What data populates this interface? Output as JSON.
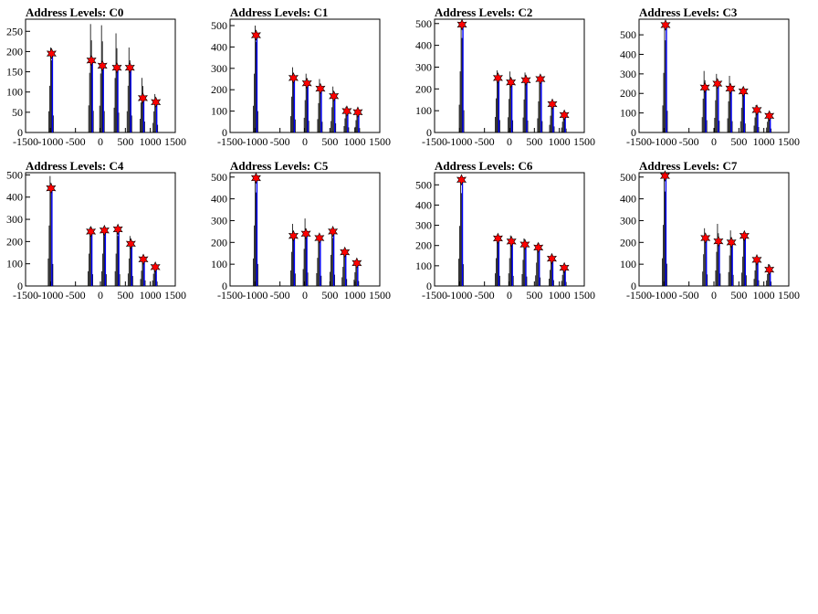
{
  "figure": {
    "background": "#ffffff",
    "hist_color": "#000000",
    "fit_color": "#0000ff",
    "marker_color": "#ff0000"
  },
  "chart_data": [
    {
      "type": "bar",
      "title": "Address Levels: C0",
      "xlim": [
        -1500,
        1500
      ],
      "ylim": [
        0,
        280
      ],
      "x_ticks": [
        -1500,
        -1000,
        -500,
        0,
        500,
        1000,
        1500
      ],
      "x_tick_labels": [
        "-1500",
        "-1000",
        "-500",
        "0",
        "500",
        "1000",
        "1500"
      ],
      "y_ticks": [
        0,
        50,
        100,
        150,
        200,
        250
      ],
      "y_tick_labels": [
        "0",
        "50",
        "100",
        "150",
        "200",
        "250"
      ],
      "peaks": [
        {
          "x": -980,
          "y": 195,
          "max": 210
        },
        {
          "x": -180,
          "y": 178,
          "max": 268
        },
        {
          "x": 40,
          "y": 165,
          "max": 265
        },
        {
          "x": 330,
          "y": 160,
          "max": 245
        },
        {
          "x": 590,
          "y": 160,
          "max": 210
        },
        {
          "x": 850,
          "y": 85,
          "max": 135
        },
        {
          "x": 1110,
          "y": 75,
          "max": 95
        }
      ]
    },
    {
      "type": "bar",
      "title": "Address Levels: C1",
      "xlim": [
        -1500,
        1500
      ],
      "ylim": [
        0,
        530
      ],
      "x_ticks": [
        -1500,
        -1000,
        -500,
        0,
        500,
        1000,
        1500
      ],
      "x_tick_labels": [
        "-1500",
        "-1000",
        "-500",
        "0",
        "500",
        "1000",
        "1500"
      ],
      "y_ticks": [
        0,
        100,
        200,
        300,
        400,
        500
      ],
      "y_tick_labels": [
        "0",
        "100",
        "200",
        "300",
        "400",
        "500"
      ],
      "peaks": [
        {
          "x": -980,
          "y": 455,
          "max": 500
        },
        {
          "x": -230,
          "y": 255,
          "max": 305
        },
        {
          "x": 40,
          "y": 230,
          "max": 275
        },
        {
          "x": 310,
          "y": 205,
          "max": 250
        },
        {
          "x": 580,
          "y": 170,
          "max": 215
        },
        {
          "x": 840,
          "y": 100,
          "max": 120
        },
        {
          "x": 1060,
          "y": 95,
          "max": 105
        }
      ]
    },
    {
      "type": "bar",
      "title": "Address Levels: C2",
      "xlim": [
        -1500,
        1500
      ],
      "ylim": [
        0,
        520
      ],
      "x_ticks": [
        -1500,
        -1000,
        -500,
        0,
        500,
        1000,
        1500
      ],
      "x_tick_labels": [
        "-1500",
        "-1000",
        "-500",
        "0",
        "500",
        "1000",
        "1500"
      ],
      "y_ticks": [
        0,
        100,
        200,
        300,
        400,
        500
      ],
      "y_tick_labels": [
        "0",
        "100",
        "200",
        "300",
        "400",
        "500"
      ],
      "peaks": [
        {
          "x": -950,
          "y": 495,
          "max": 510
        },
        {
          "x": -230,
          "y": 250,
          "max": 285
        },
        {
          "x": 30,
          "y": 230,
          "max": 280
        },
        {
          "x": 330,
          "y": 240,
          "max": 275
        },
        {
          "x": 620,
          "y": 245,
          "max": 260
        },
        {
          "x": 860,
          "y": 130,
          "max": 140
        },
        {
          "x": 1100,
          "y": 80,
          "max": 90
        }
      ]
    },
    {
      "type": "bar",
      "title": "Address Levels: C3",
      "xlim": [
        -1500,
        1500
      ],
      "ylim": [
        0,
        580
      ],
      "x_ticks": [
        -1500,
        -1000,
        -500,
        0,
        500,
        1000,
        1500
      ],
      "x_tick_labels": [
        "-1500",
        "-1000",
        "-500",
        "0",
        "500",
        "1000",
        "1500"
      ],
      "y_ticks": [
        0,
        100,
        200,
        300,
        400,
        500
      ],
      "y_tick_labels": [
        "0",
        "100",
        "200",
        "300",
        "400",
        "500"
      ],
      "peaks": [
        {
          "x": -970,
          "y": 550,
          "max": 555
        },
        {
          "x": -180,
          "y": 230,
          "max": 315
        },
        {
          "x": 70,
          "y": 250,
          "max": 300
        },
        {
          "x": 330,
          "y": 225,
          "max": 290
        },
        {
          "x": 590,
          "y": 210,
          "max": 230
        },
        {
          "x": 860,
          "y": 115,
          "max": 140
        },
        {
          "x": 1110,
          "y": 85,
          "max": 100
        }
      ]
    },
    {
      "type": "bar",
      "title": "Address Levels: C4",
      "xlim": [
        -1500,
        1500
      ],
      "ylim": [
        0,
        510
      ],
      "x_ticks": [
        -1500,
        -1000,
        -500,
        0,
        500,
        1000,
        1500
      ],
      "x_tick_labels": [
        "-1500",
        "-1000",
        "-500",
        "0",
        "500",
        "1000",
        "1500"
      ],
      "y_ticks": [
        0,
        100,
        200,
        300,
        400,
        500
      ],
      "y_tick_labels": [
        "0",
        "100",
        "200",
        "300",
        "400",
        "500"
      ],
      "peaks": [
        {
          "x": -990,
          "y": 440,
          "max": 495
        },
        {
          "x": -190,
          "y": 245,
          "max": 265
        },
        {
          "x": 80,
          "y": 250,
          "max": 265
        },
        {
          "x": 350,
          "y": 255,
          "max": 265
        },
        {
          "x": 610,
          "y": 190,
          "max": 225
        },
        {
          "x": 860,
          "y": 120,
          "max": 125
        },
        {
          "x": 1100,
          "y": 85,
          "max": 100
        }
      ]
    },
    {
      "type": "bar",
      "title": "Address Levels: C5",
      "xlim": [
        -1500,
        1500
      ],
      "ylim": [
        0,
        520
      ],
      "x_ticks": [
        -1500,
        -1000,
        -500,
        0,
        500,
        1000,
        1500
      ],
      "x_tick_labels": [
        "-1500",
        "-1000",
        "-500",
        "0",
        "500",
        "1000",
        "1500"
      ],
      "y_ticks": [
        0,
        100,
        200,
        300,
        400,
        500
      ],
      "y_tick_labels": [
        "0",
        "100",
        "200",
        "300",
        "400",
        "500"
      ],
      "peaks": [
        {
          "x": -980,
          "y": 495,
          "max": 505
        },
        {
          "x": -230,
          "y": 230,
          "max": 285
        },
        {
          "x": 20,
          "y": 240,
          "max": 310
        },
        {
          "x": 290,
          "y": 220,
          "max": 235
        },
        {
          "x": 560,
          "y": 250,
          "max": 260
        },
        {
          "x": 800,
          "y": 155,
          "max": 160
        },
        {
          "x": 1040,
          "y": 105,
          "max": 115
        }
      ]
    },
    {
      "type": "bar",
      "title": "Address Levels: C6",
      "xlim": [
        -1500,
        1500
      ],
      "ylim": [
        0,
        560
      ],
      "x_ticks": [
        -1500,
        -1000,
        -500,
        0,
        500,
        1000,
        1500
      ],
      "x_tick_labels": [
        "-1500",
        "-1000",
        "-500",
        "0",
        "500",
        "1000",
        "1500"
      ],
      "y_ticks": [
        0,
        100,
        200,
        300,
        400,
        500
      ],
      "y_tick_labels": [
        "0",
        "100",
        "200",
        "300",
        "400",
        "500"
      ],
      "peaks": [
        {
          "x": -960,
          "y": 525,
          "max": 540
        },
        {
          "x": -230,
          "y": 235,
          "max": 250
        },
        {
          "x": 40,
          "y": 220,
          "max": 250
        },
        {
          "x": 310,
          "y": 205,
          "max": 235
        },
        {
          "x": 580,
          "y": 190,
          "max": 210
        },
        {
          "x": 850,
          "y": 135,
          "max": 145
        },
        {
          "x": 1100,
          "y": 90,
          "max": 100
        }
      ]
    },
    {
      "type": "bar",
      "title": "Address Levels: C7",
      "xlim": [
        -1500,
        1500
      ],
      "ylim": [
        0,
        520
      ],
      "x_ticks": [
        -1500,
        -1000,
        -500,
        0,
        500,
        1000,
        1500
      ],
      "x_tick_labels": [
        "-1500",
        "-1000",
        "-500",
        "0",
        "500",
        "1000",
        "1500"
      ],
      "y_ticks": [
        0,
        100,
        200,
        300,
        400,
        500
      ],
      "y_tick_labels": [
        "0",
        "100",
        "200",
        "300",
        "400",
        "500"
      ],
      "peaks": [
        {
          "x": -980,
          "y": 505,
          "max": 510
        },
        {
          "x": -170,
          "y": 220,
          "max": 265
        },
        {
          "x": 90,
          "y": 205,
          "max": 285
        },
        {
          "x": 350,
          "y": 200,
          "max": 255
        },
        {
          "x": 610,
          "y": 230,
          "max": 245
        },
        {
          "x": 860,
          "y": 120,
          "max": 130
        },
        {
          "x": 1110,
          "y": 75,
          "max": 100
        }
      ]
    }
  ]
}
